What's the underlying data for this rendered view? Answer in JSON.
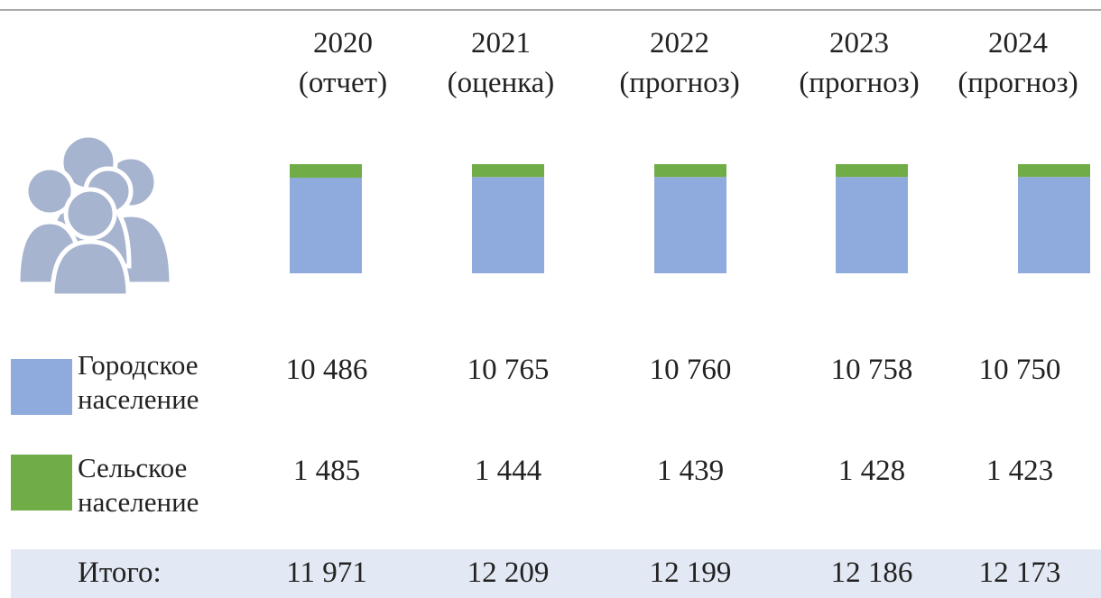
{
  "chart_data": {
    "type": "bar",
    "stacked": true,
    "categories": [
      "2020",
      "2021",
      "2022",
      "2023",
      "2024"
    ],
    "category_notes": [
      "(отчет)",
      "(оценка)",
      "(прогноз)",
      "(прогноз)",
      "(прогноз)"
    ],
    "series": [
      {
        "name": "Городское население",
        "name_lines": [
          "Городское",
          "население"
        ],
        "color": "#8faadc",
        "values": [
          10486,
          10765,
          10760,
          10758,
          10750
        ],
        "labels": [
          "10 486",
          "10 765",
          "10 760",
          "10 758",
          "10 750"
        ]
      },
      {
        "name": "Сельское население",
        "name_lines": [
          "Сельское",
          "население"
        ],
        "color": "#70ad47",
        "values": [
          1485,
          1444,
          1439,
          1428,
          1423
        ],
        "labels": [
          "1 485",
          "1 444",
          "1 439",
          "1 428",
          "1 423"
        ]
      }
    ],
    "totals": {
      "label": "Итого:",
      "values": [
        11971,
        12209,
        12199,
        12186,
        12173
      ],
      "labels": [
        "11 971",
        "12 209",
        "12 199",
        "12 186",
        "12 173"
      ]
    }
  },
  "colors": {
    "total_band": "#e3e9f4",
    "icon": "#a7b4cf",
    "rule": "#a9a9a9"
  },
  "icon": "people-group-icon"
}
